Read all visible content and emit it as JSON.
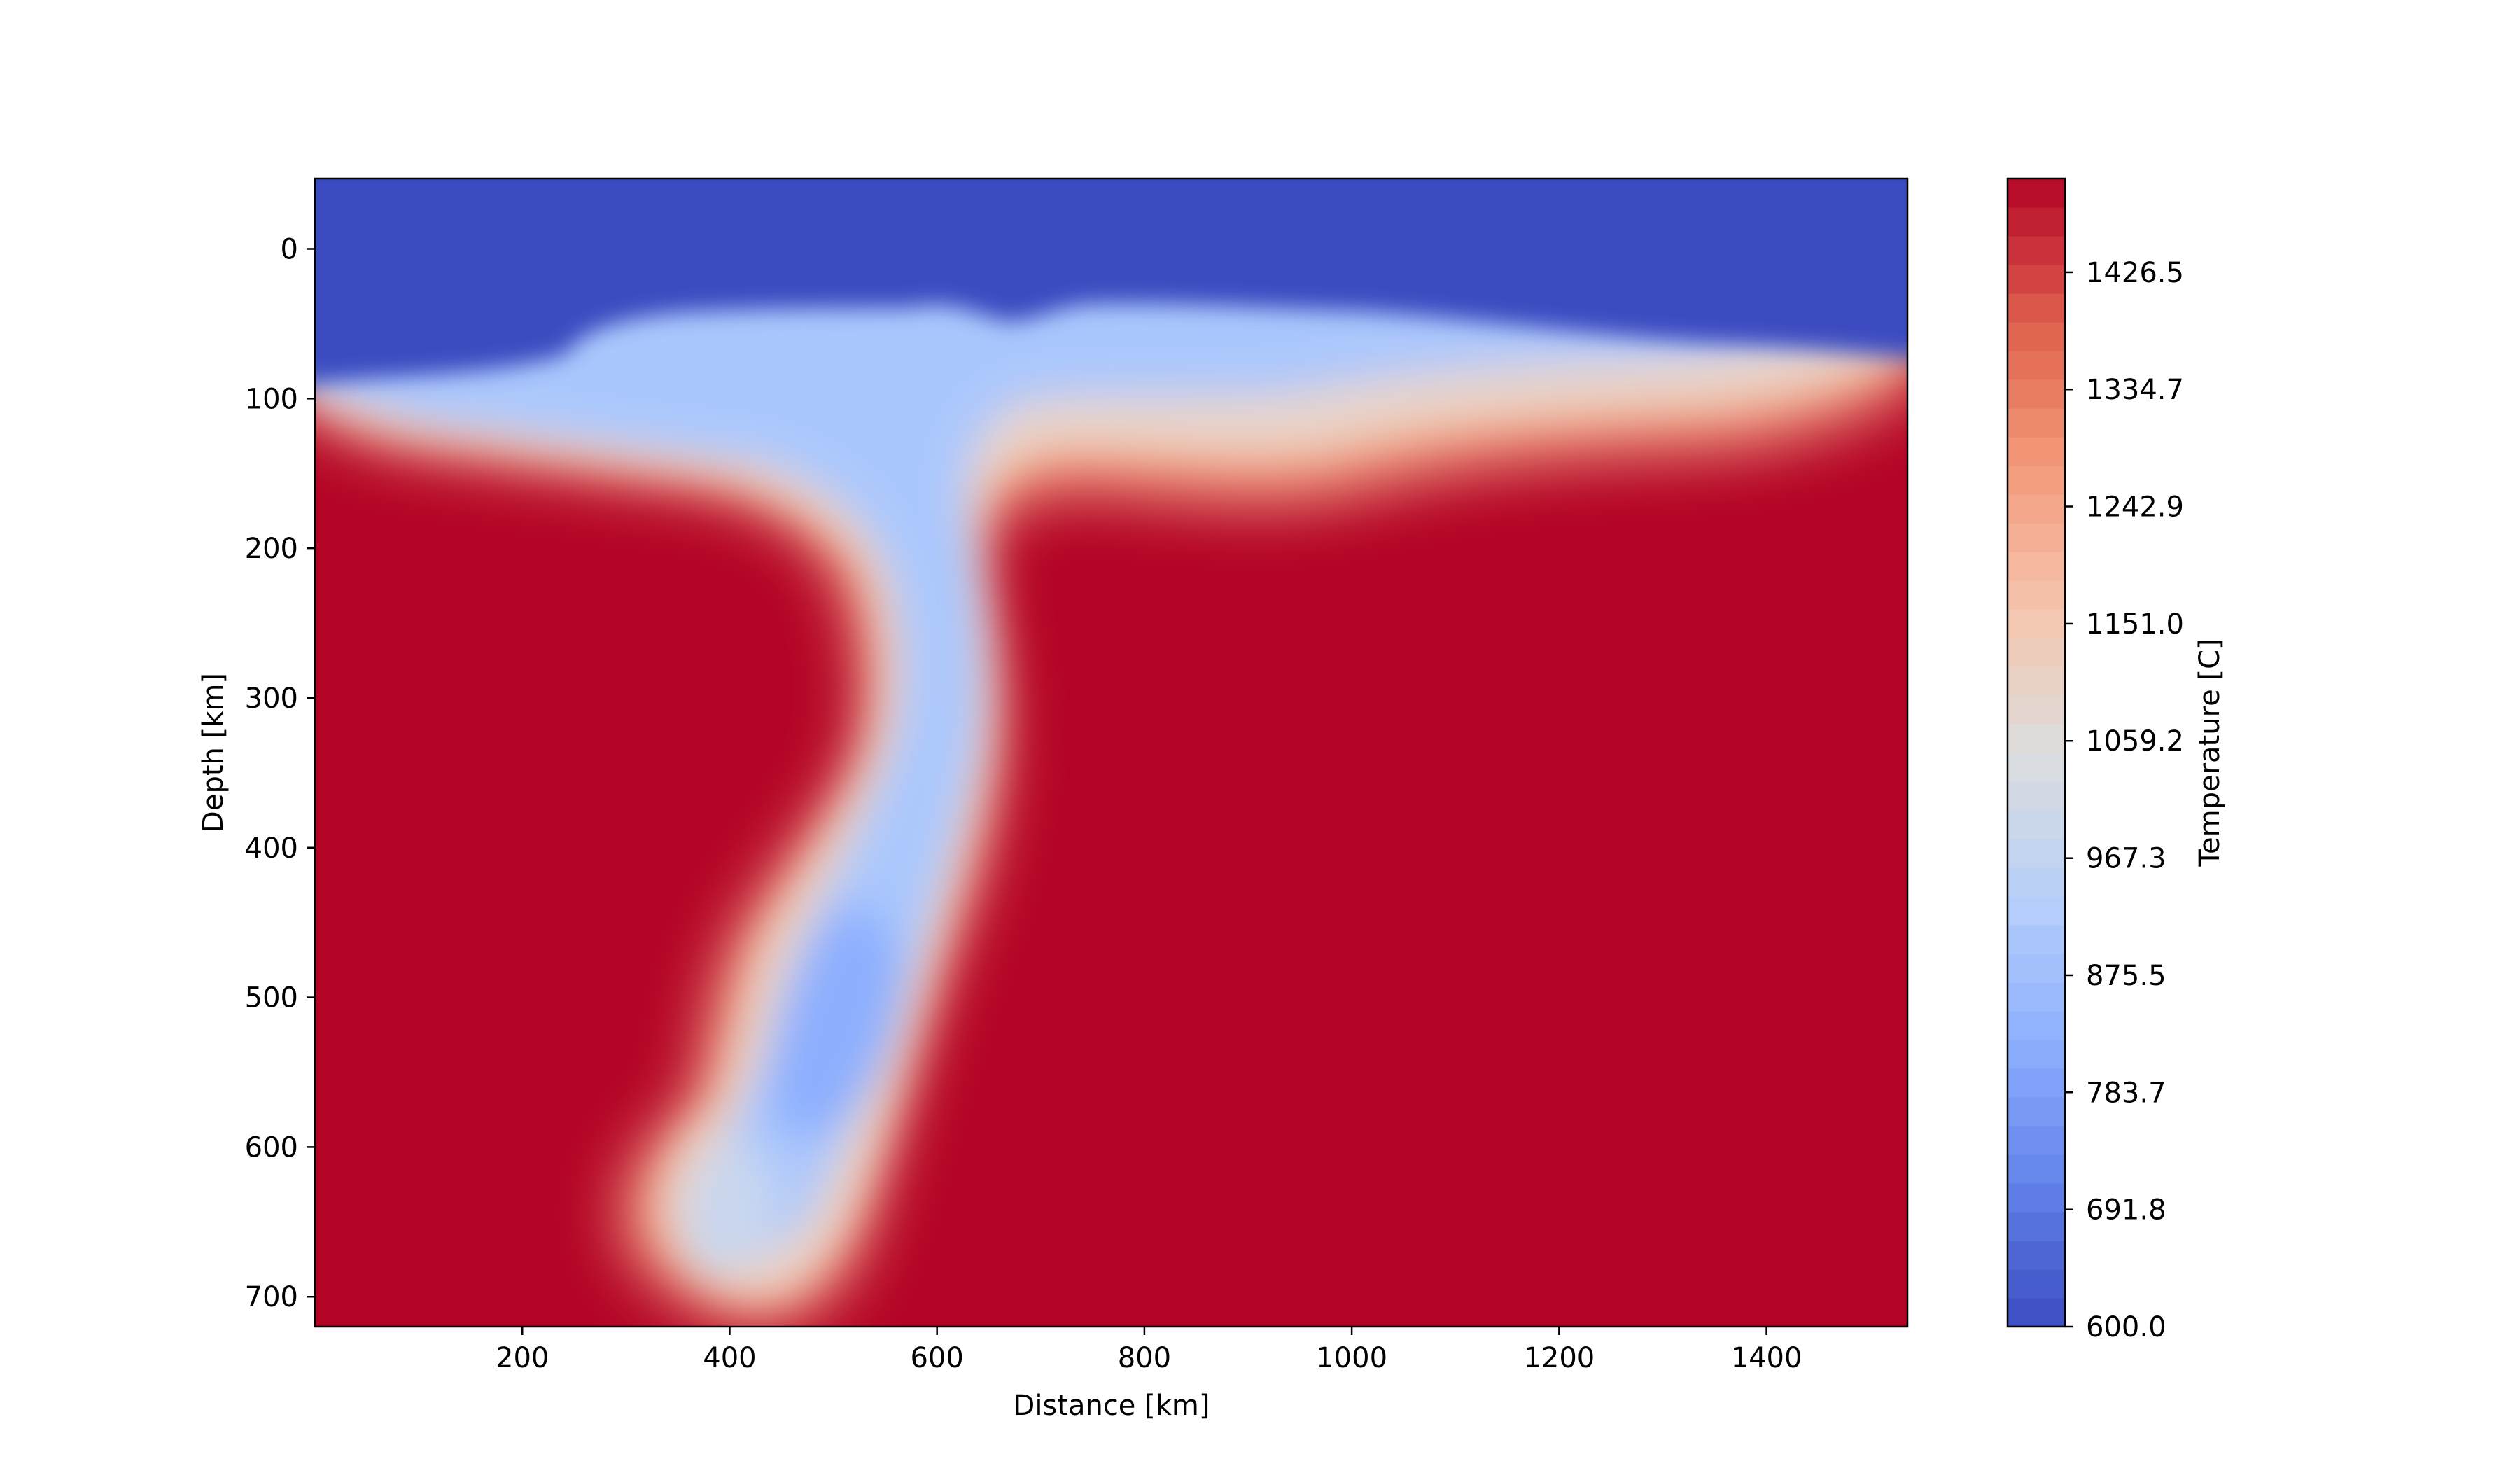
{
  "chart_data": {
    "type": "heatmap",
    "title": "",
    "xlabel": "Distance [km]",
    "ylabel": "Depth [km]",
    "xlim": [
      0,
      1536
    ],
    "ylim": [
      720,
      -47
    ],
    "xticks": [
      200,
      400,
      600,
      800,
      1000,
      1200,
      1400
    ],
    "yticks": [
      0,
      100,
      200,
      300,
      400,
      500,
      600,
      700
    ],
    "colorbar": {
      "label": "Temperature [C]",
      "colormap": "coolwarm",
      "range": [
        600.0,
        1500.0
      ],
      "ticks": [
        "600.0",
        "691.8",
        "783.7",
        "875.5",
        "967.3",
        "1059.2",
        "1151.0",
        "1242.9",
        "1334.7",
        "1426.5"
      ],
      "levels": 40
    },
    "colors": {
      "cold": "#3b4cc0",
      "neutral": "#dddddd",
      "hot": "#b40426"
    },
    "field_description_values": {
      "background_temperature": 1500,
      "surface_temperature": 600,
      "lithosphere_base_depth": [
        80,
        110
      ],
      "slab_core_min_temperature": 830,
      "slab_tip_depth": 710
    }
  }
}
